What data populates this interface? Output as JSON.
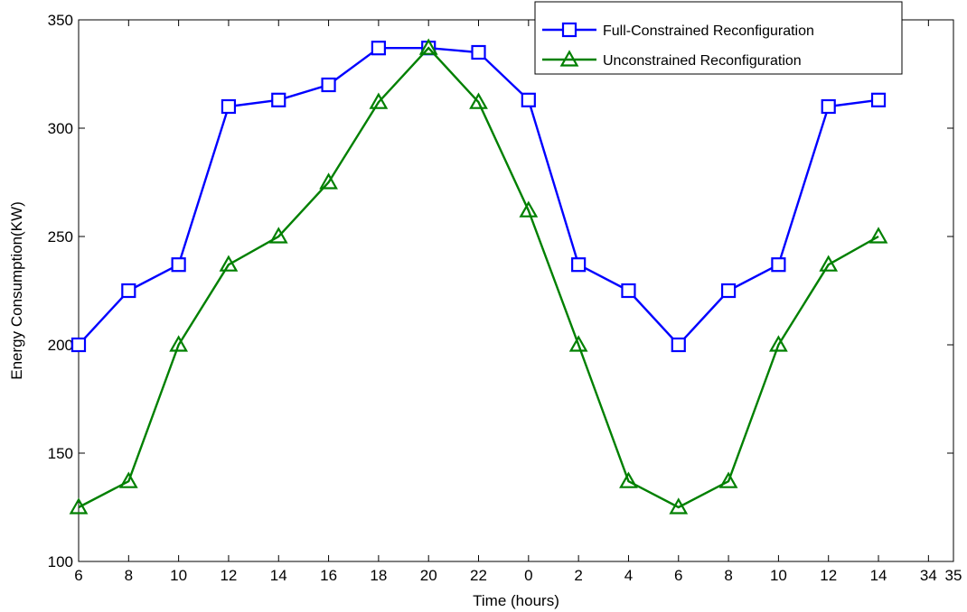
{
  "chart_data": {
    "type": "line",
    "xlabel": "Time (hours)",
    "ylabel": "Energy Consumption(KW)",
    "xlim": [
      0,
      35
    ],
    "ylim": [
      100,
      350
    ],
    "x_tick_labels": [
      "6",
      "8",
      "10",
      "12",
      "14",
      "16",
      "18",
      "20",
      "22",
      "0",
      "2",
      "4",
      "6",
      "8",
      "10",
      "12",
      "14",
      "34",
      "35"
    ],
    "x_tick_positions": [
      0,
      2,
      4,
      6,
      8,
      10,
      12,
      14,
      16,
      18,
      20,
      22,
      24,
      26,
      28,
      30,
      32,
      34,
      35
    ],
    "y_ticks": [
      100,
      150,
      200,
      250,
      300,
      350
    ],
    "x": [
      0,
      2,
      4,
      6,
      8,
      10,
      12,
      14,
      16,
      18,
      20,
      22,
      24,
      26,
      28,
      30,
      32
    ],
    "series": [
      {
        "name": "Full-Constrained Reconfiguration",
        "color": "#0000ff",
        "marker": "square",
        "values": [
          200,
          225,
          237,
          310,
          313,
          320,
          337,
          337,
          335,
          313,
          237,
          225,
          200,
          225,
          237,
          310,
          313
        ]
      },
      {
        "name": "Unconstrained Reconfiguration",
        "color": "#008000",
        "marker": "triangle",
        "values": [
          125,
          137,
          200,
          237,
          250,
          275,
          312,
          337,
          312,
          262,
          200,
          137,
          125,
          137,
          200,
          237,
          250
        ]
      }
    ],
    "grid": false,
    "legend_position": "top-right"
  }
}
